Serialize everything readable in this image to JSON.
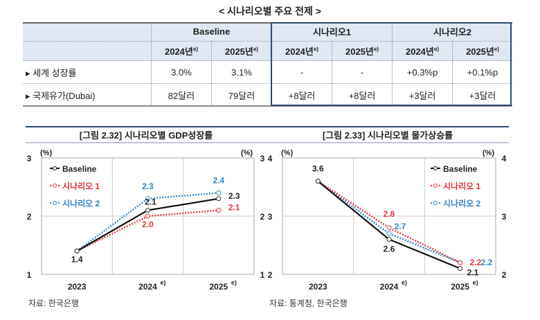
{
  "table": {
    "title": "< 시나리오별 주요 전제 >",
    "groups": [
      "Baseline",
      "시나리오1",
      "시나리오2"
    ],
    "years": [
      "2024년",
      "2025년",
      "2024년",
      "2025년",
      "2024년",
      "2025년"
    ],
    "year_sup": "e)",
    "rows": [
      {
        "label": "▸ 세계 성장률",
        "values": [
          "3.0%",
          "3.1%",
          "-",
          "-",
          "+0.3%p",
          "+0.1%p"
        ]
      },
      {
        "label": "▸ 국제유가(Dubai)",
        "values": [
          "82달러",
          "79달러",
          "+8달러",
          "+8달러",
          "+3달러",
          "+3달러"
        ]
      }
    ],
    "header_bg": "#dfe8f3",
    "border_color": "#2e4a72"
  },
  "chart_data": [
    {
      "type": "line",
      "title": "[그림 2.32]  시나리오별 GDP성장률",
      "ylabel_left": "(%)",
      "ylabel_right": "(%)",
      "categories": [
        "2023",
        "2024",
        "2025"
      ],
      "category_sup": [
        "",
        "e)",
        "e)"
      ],
      "ylim": [
        1,
        3
      ],
      "yticks": [
        1,
        2,
        3
      ],
      "grid": true,
      "legend": "top-left",
      "series": [
        {
          "name": "Baseline",
          "values": [
            1.4,
            2.1,
            2.3
          ],
          "labels": [
            "1.4",
            "2.1",
            "2.3"
          ],
          "color": "#111111",
          "style": "solid"
        },
        {
          "name": "시나리오 1",
          "values": [
            1.4,
            2.0,
            2.1
          ],
          "labels": [
            "",
            "2.0",
            "2.1"
          ],
          "color": "#e8323c",
          "style": "dotted"
        },
        {
          "name": "시나리오 2",
          "values": [
            1.4,
            2.3,
            2.4
          ],
          "labels": [
            "",
            "2.3",
            "2.4"
          ],
          "color": "#2e86c8",
          "style": "dotted"
        }
      ],
      "source": "자료: 한국은행"
    },
    {
      "type": "line",
      "title": "[그림 2.33]  시나리오별 물가상승률",
      "ylabel_left": "(%)",
      "ylabel_right": "(%)",
      "categories": [
        "2023",
        "2024",
        "2025"
      ],
      "category_sup": [
        "",
        "e)",
        "e)"
      ],
      "ylim": [
        2,
        4
      ],
      "yticks": [
        2,
        3,
        4
      ],
      "grid": true,
      "legend": "top-right",
      "series": [
        {
          "name": "Baseline",
          "values": [
            3.6,
            2.6,
            2.1
          ],
          "labels": [
            "3.6",
            "2.6",
            "2.1"
          ],
          "color": "#111111",
          "style": "solid"
        },
        {
          "name": "시나리오 1",
          "values": [
            3.6,
            2.8,
            2.2
          ],
          "labels": [
            "",
            "2.8",
            "2.2"
          ],
          "color": "#e8323c",
          "style": "dotted"
        },
        {
          "name": "시나리오 2",
          "values": [
            3.6,
            2.7,
            2.2
          ],
          "labels": [
            "",
            "2.7",
            "2.2"
          ],
          "color": "#2e86c8",
          "style": "dotted"
        }
      ],
      "source": "자료: 통계청, 한국은행"
    }
  ]
}
